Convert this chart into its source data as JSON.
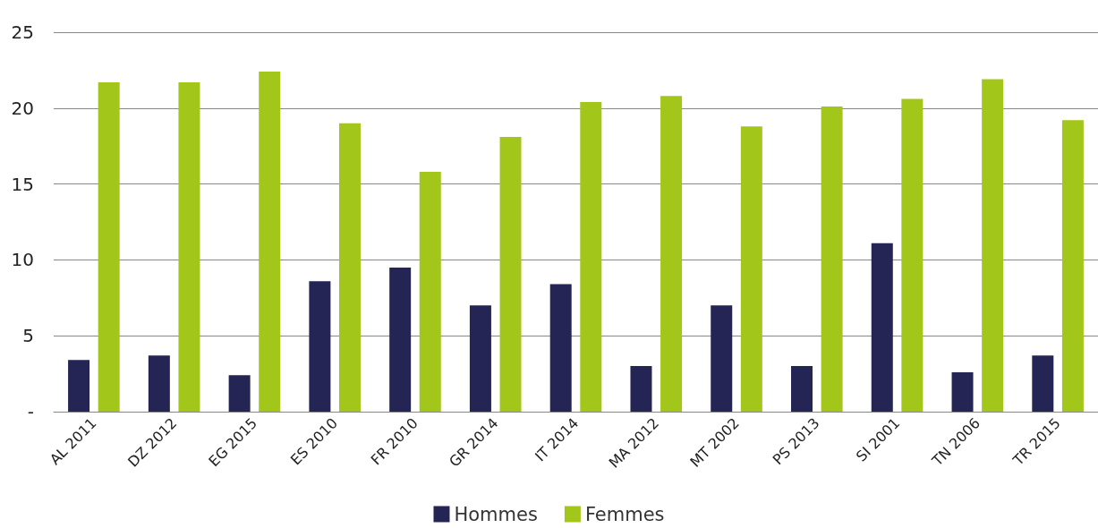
{
  "chart_data": {
    "type": "bar",
    "categories": [
      "AL 2011",
      "DZ 2012",
      "EG 2015",
      "ES 2010",
      "FR 2010",
      "GR 2014",
      "IT 2014",
      "MA 2012",
      "MT 2002",
      "PS 2013",
      "SI 2001",
      "TN 2006",
      "TR 2015"
    ],
    "series": [
      {
        "name": "Hommes",
        "color": "#252555",
        "values": [
          3.4,
          3.7,
          2.4,
          8.6,
          9.5,
          7.0,
          8.4,
          3.0,
          7.0,
          3.0,
          11.1,
          2.6,
          3.7
        ]
      },
      {
        "name": "Femmes",
        "color": "#a3c61a",
        "values": [
          21.7,
          21.7,
          22.4,
          19.0,
          15.8,
          18.1,
          20.4,
          20.8,
          18.8,
          20.1,
          20.6,
          21.9,
          19.2
        ]
      }
    ],
    "ylim": [
      0,
      25
    ],
    "yticks": [
      {
        "value": 0,
        "label": "-"
      },
      5,
      10,
      15,
      20,
      25
    ],
    "grid": "y",
    "legend": "bottom"
  }
}
